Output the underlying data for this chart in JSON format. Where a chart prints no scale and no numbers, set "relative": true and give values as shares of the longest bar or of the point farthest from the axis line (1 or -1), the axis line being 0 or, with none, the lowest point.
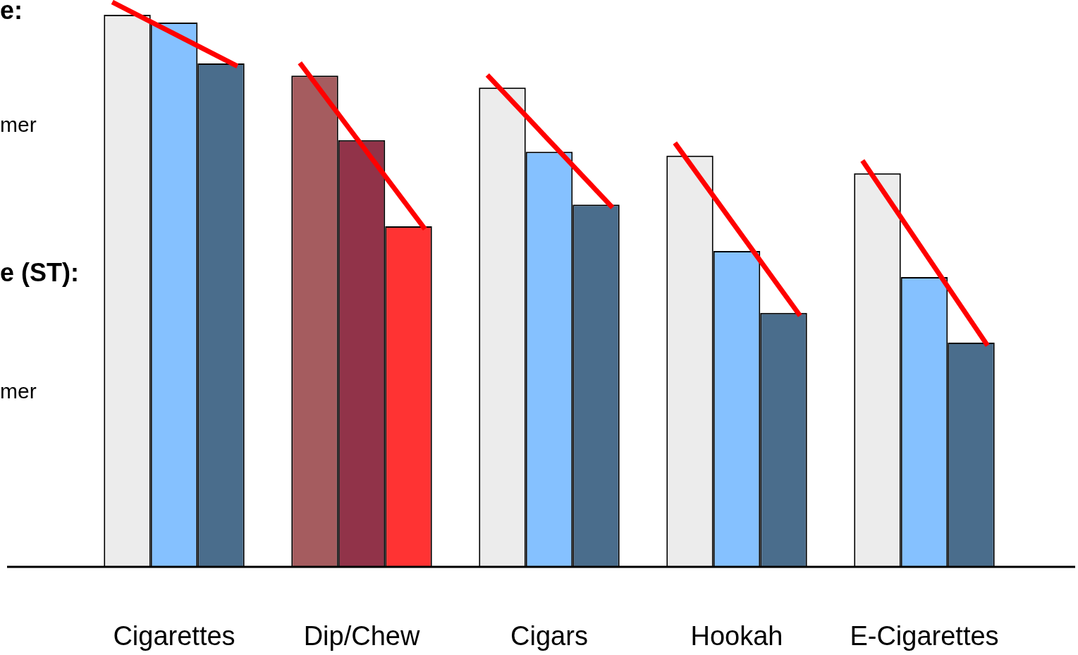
{
  "chart_data": {
    "type": "bar",
    "relative": true,
    "categories": [
      "Cigarettes",
      "Dip/Chew",
      "Cigars",
      "Hookah",
      "E-Cigarettes"
    ],
    "series": [
      {
        "colors": [
          "#ececec",
          "#a55c5f",
          "#ececec",
          "#ececec",
          "#ececec"
        ],
        "values": [
          1,
          0.89,
          0.868,
          0.745,
          0.713
        ]
      },
      {
        "colors": [
          "#85c1ff",
          "#913349",
          "#85c1ff",
          "#85c1ff",
          "#85c1ff"
        ],
        "values": [
          0.986,
          0.773,
          0.752,
          0.572,
          0.525
        ]
      },
      {
        "colors": [
          "#4a6d8c",
          "#ff3333",
          "#4a6d8c",
          "#4a6d8c",
          "#4a6d8c"
        ],
        "values": [
          0.912,
          0.617,
          0.656,
          0.46,
          0.406
        ]
      }
    ],
    "annotations": [
      "e:",
      "mer",
      "e (ST):",
      "mer"
    ],
    "legend": false,
    "grid": false
  }
}
